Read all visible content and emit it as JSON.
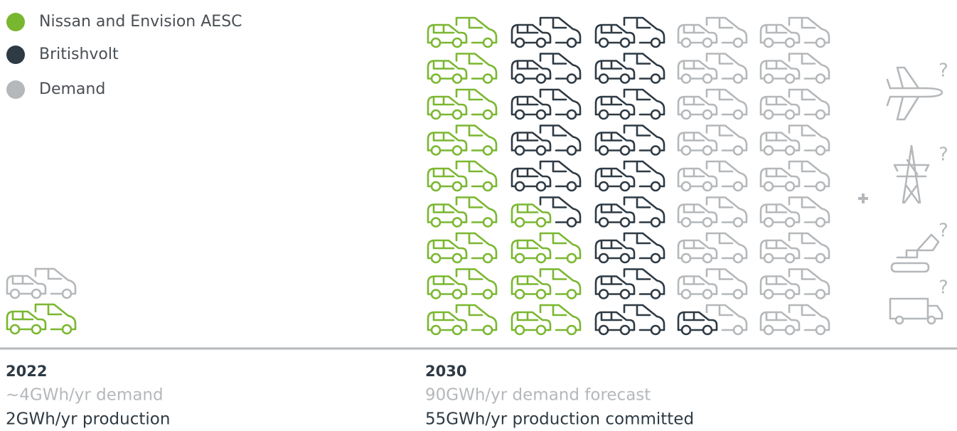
{
  "legend": [
    {
      "label": "Nissan and Envision AESC",
      "color": "#7ab730"
    },
    {
      "label": "Britishvolt",
      "color": "#2e3a44"
    },
    {
      "label": "Demand",
      "color": "#b5b8bb"
    }
  ],
  "panels": [
    {
      "year": "2022",
      "demand": "~4GWh/yr demand",
      "production": "2GWh/yr production"
    },
    {
      "year": "2030",
      "demand": "90GWh/yr demand forecast",
      "production": "55GWh/yr production committed"
    }
  ],
  "other_uses": [
    "?",
    "?",
    "?",
    "?"
  ]
}
